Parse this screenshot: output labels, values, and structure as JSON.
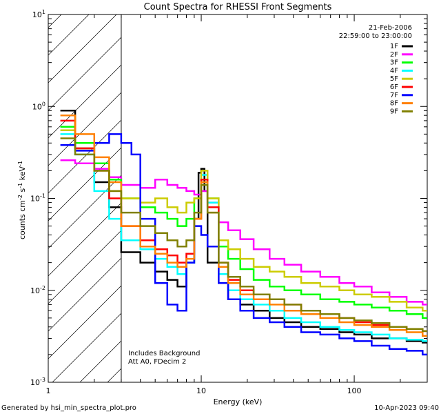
{
  "chart_data": {
    "type": "line",
    "title": "Count Spectra for RHESSI Front Segments",
    "xlabel": "Energy (keV)",
    "ylabel": "counts cm^-2 s^-1 keV^-1",
    "xscale": "log",
    "yscale": "log",
    "xlim": [
      1,
      300
    ],
    "ylim": [
      0.001,
      10
    ],
    "x_tick_labels": [
      "1",
      "10",
      "100"
    ],
    "y_tick_labels": [
      "10^-3",
      "10^-2",
      "10^-1",
      "10^0",
      "10^1"
    ],
    "date": "21-Feb-2006",
    "time_range": "22:59:00 to 23:00:00",
    "annotations": [
      "Includes Background",
      "Att A0, FDecim 2"
    ],
    "hatched_region": {
      "x_from": 1,
      "x_to": 3
    },
    "series": [
      {
        "name": "1F",
        "color": "#000000",
        "x": [
          1.2,
          1.5,
          2,
          2.5,
          3,
          4,
          5,
          6,
          7,
          8,
          9,
          9.6,
          10,
          10.5,
          11,
          13,
          15,
          18,
          22,
          28,
          35,
          45,
          60,
          80,
          100,
          130,
          170,
          220,
          280
        ],
        "y": [
          0.9,
          0.35,
          0.15,
          0.08,
          0.026,
          0.02,
          0.016,
          0.013,
          0.011,
          0.02,
          0.06,
          0.19,
          0.21,
          0.12,
          0.02,
          0.012,
          0.008,
          0.007,
          0.006,
          0.005,
          0.0045,
          0.004,
          0.0038,
          0.0035,
          0.0033,
          0.003,
          0.003,
          0.0028,
          0.0027
        ]
      },
      {
        "name": "2F",
        "color": "#ff00ff",
        "x": [
          1.2,
          1.5,
          2,
          2.5,
          3,
          4,
          5,
          6,
          7,
          8,
          9,
          10,
          11,
          13,
          15,
          18,
          22,
          28,
          35,
          45,
          60,
          80,
          100,
          130,
          170,
          220,
          280
        ],
        "y": [
          0.26,
          0.24,
          0.21,
          0.17,
          0.14,
          0.13,
          0.16,
          0.14,
          0.13,
          0.12,
          0.11,
          0.12,
          0.09,
          0.055,
          0.045,
          0.036,
          0.028,
          0.022,
          0.019,
          0.016,
          0.014,
          0.012,
          0.011,
          0.0095,
          0.0085,
          0.0075,
          0.007
        ]
      },
      {
        "name": "3F",
        "color": "#00ff00",
        "x": [
          1.2,
          1.5,
          2,
          2.5,
          3,
          4,
          5,
          6,
          7,
          8,
          9,
          10,
          11,
          13,
          15,
          18,
          22,
          28,
          35,
          45,
          60,
          80,
          100,
          130,
          170,
          220,
          280
        ],
        "y": [
          0.6,
          0.4,
          0.24,
          0.16,
          0.1,
          0.08,
          0.07,
          0.06,
          0.05,
          0.06,
          0.1,
          0.16,
          0.1,
          0.03,
          0.022,
          0.017,
          0.013,
          0.011,
          0.01,
          0.009,
          0.008,
          0.0075,
          0.007,
          0.0065,
          0.006,
          0.0055,
          0.005
        ]
      },
      {
        "name": "4F",
        "color": "#00ffff",
        "x": [
          1.2,
          1.5,
          2,
          2.5,
          3,
          4,
          5,
          6,
          7,
          8,
          9,
          10,
          11,
          13,
          15,
          18,
          22,
          28,
          35,
          45,
          60,
          80,
          100,
          130,
          170,
          220,
          280
        ],
        "y": [
          0.5,
          0.3,
          0.12,
          0.06,
          0.035,
          0.028,
          0.022,
          0.018,
          0.015,
          0.02,
          0.06,
          0.18,
          0.09,
          0.015,
          0.01,
          0.008,
          0.007,
          0.006,
          0.005,
          0.0045,
          0.004,
          0.0037,
          0.0035,
          0.0033,
          0.003,
          0.0029,
          0.0028
        ]
      },
      {
        "name": "5F",
        "color": "#cccc00",
        "x": [
          1.2,
          1.5,
          2,
          2.5,
          3,
          4,
          5,
          6,
          7,
          8,
          9,
          10,
          11,
          13,
          15,
          18,
          22,
          28,
          35,
          45,
          60,
          80,
          100,
          130,
          170,
          220,
          280
        ],
        "y": [
          0.55,
          0.35,
          0.2,
          0.12,
          0.1,
          0.09,
          0.1,
          0.08,
          0.07,
          0.09,
          0.1,
          0.2,
          0.1,
          0.035,
          0.028,
          0.022,
          0.018,
          0.016,
          0.014,
          0.012,
          0.011,
          0.01,
          0.009,
          0.0085,
          0.0075,
          0.0065,
          0.006
        ]
      },
      {
        "name": "6F",
        "color": "#ff0000",
        "x": [
          1.2,
          1.5,
          2,
          2.5,
          3,
          4,
          5,
          6,
          7,
          8,
          9,
          10,
          11,
          13,
          15,
          18,
          22,
          28,
          35,
          45,
          60,
          80,
          100,
          130,
          170,
          220,
          280
        ],
        "y": [
          0.7,
          0.35,
          0.2,
          0.1,
          0.05,
          0.035,
          0.028,
          0.024,
          0.02,
          0.025,
          0.06,
          0.16,
          0.08,
          0.02,
          0.013,
          0.01,
          0.009,
          0.008,
          0.007,
          0.006,
          0.0055,
          0.005,
          0.0045,
          0.0042,
          0.004,
          0.0038,
          0.0036
        ]
      },
      {
        "name": "7F",
        "color": "#0000ff",
        "x": [
          1.2,
          1.5,
          2,
          2.5,
          3,
          3.5,
          4,
          5,
          6,
          7,
          8,
          9,
          10,
          11,
          13,
          15,
          18,
          22,
          28,
          35,
          45,
          60,
          80,
          100,
          130,
          170,
          220,
          280
        ],
        "y": [
          0.38,
          0.33,
          0.4,
          0.5,
          0.4,
          0.3,
          0.06,
          0.012,
          0.007,
          0.006,
          0.02,
          0.05,
          0.04,
          0.03,
          0.012,
          0.008,
          0.006,
          0.005,
          0.0045,
          0.004,
          0.0035,
          0.0033,
          0.003,
          0.0028,
          0.0025,
          0.0023,
          0.0022,
          0.002
        ]
      },
      {
        "name": "8F",
        "color": "#ff8000",
        "x": [
          1.2,
          1.5,
          2,
          2.5,
          3,
          4,
          5,
          6,
          7,
          8,
          9,
          10,
          11,
          13,
          15,
          18,
          22,
          28,
          35,
          45,
          60,
          80,
          100,
          130,
          170,
          220,
          280
        ],
        "y": [
          0.8,
          0.5,
          0.28,
          0.15,
          0.05,
          0.03,
          0.025,
          0.02,
          0.018,
          0.022,
          0.06,
          0.15,
          0.07,
          0.018,
          0.012,
          0.009,
          0.008,
          0.007,
          0.006,
          0.0055,
          0.005,
          0.0045,
          0.0042,
          0.004,
          0.0037,
          0.0035,
          0.0032
        ]
      },
      {
        "name": "9F",
        "color": "#808000",
        "x": [
          1.2,
          1.5,
          2,
          2.5,
          3,
          4,
          5,
          6,
          7,
          8,
          9,
          10,
          11,
          13,
          15,
          18,
          22,
          28,
          35,
          45,
          60,
          80,
          100,
          130,
          170,
          220,
          280
        ],
        "y": [
          0.45,
          0.3,
          0.2,
          0.12,
          0.07,
          0.05,
          0.042,
          0.035,
          0.03,
          0.035,
          0.07,
          0.14,
          0.07,
          0.02,
          0.014,
          0.011,
          0.009,
          0.008,
          0.007,
          0.006,
          0.0055,
          0.005,
          0.0047,
          0.0044,
          0.004,
          0.0038,
          0.0036
        ]
      }
    ]
  },
  "footer": {
    "generated_by": "Generated by hsi_min_spectra_plot.pro",
    "timestamp": "10-Apr-2023 09:40"
  }
}
